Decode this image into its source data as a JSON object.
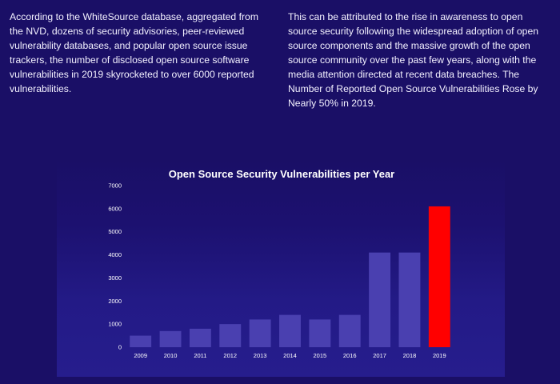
{
  "article": {
    "left_paragraph": "According to the WhiteSource database, aggregated from the NVD, dozens of security advisories, peer-reviewed vulnerability databases, and popular open source issue trackers, the number of disclosed open source software vulnerabilities in 2019 skyrocketed to over 6000 reported vulnerabilities.",
    "right_paragraph": "This can be attributed to the rise in awareness to open source security following the widespread adoption of open source components and the massive growth of the open source community over the past few years, along with the media attention directed at recent data breaches. The Number of Reported Open Source Vulnerabilities Rose by Nearly 50% in 2019."
  },
  "chart_data": {
    "type": "bar",
    "title": "Open Source Security Vulnerabilities per Year",
    "xlabel": "",
    "ylabel": "",
    "categories": [
      "2009",
      "2010",
      "2011",
      "2012",
      "2013",
      "2014",
      "2015",
      "2016",
      "2017",
      "2018",
      "2019"
    ],
    "values": [
      500,
      700,
      800,
      1000,
      1200,
      1400,
      1200,
      1400,
      4100,
      4100,
      6100
    ],
    "ylim": [
      0,
      7000
    ],
    "yticks": [
      0,
      1000,
      2000,
      3000,
      4000,
      5000,
      6000,
      7000
    ],
    "grid": false,
    "legend": "none",
    "colors": {
      "bar": "#4a40b0",
      "highlight_bar": "#ff0000",
      "highlight_category": "2019"
    }
  }
}
